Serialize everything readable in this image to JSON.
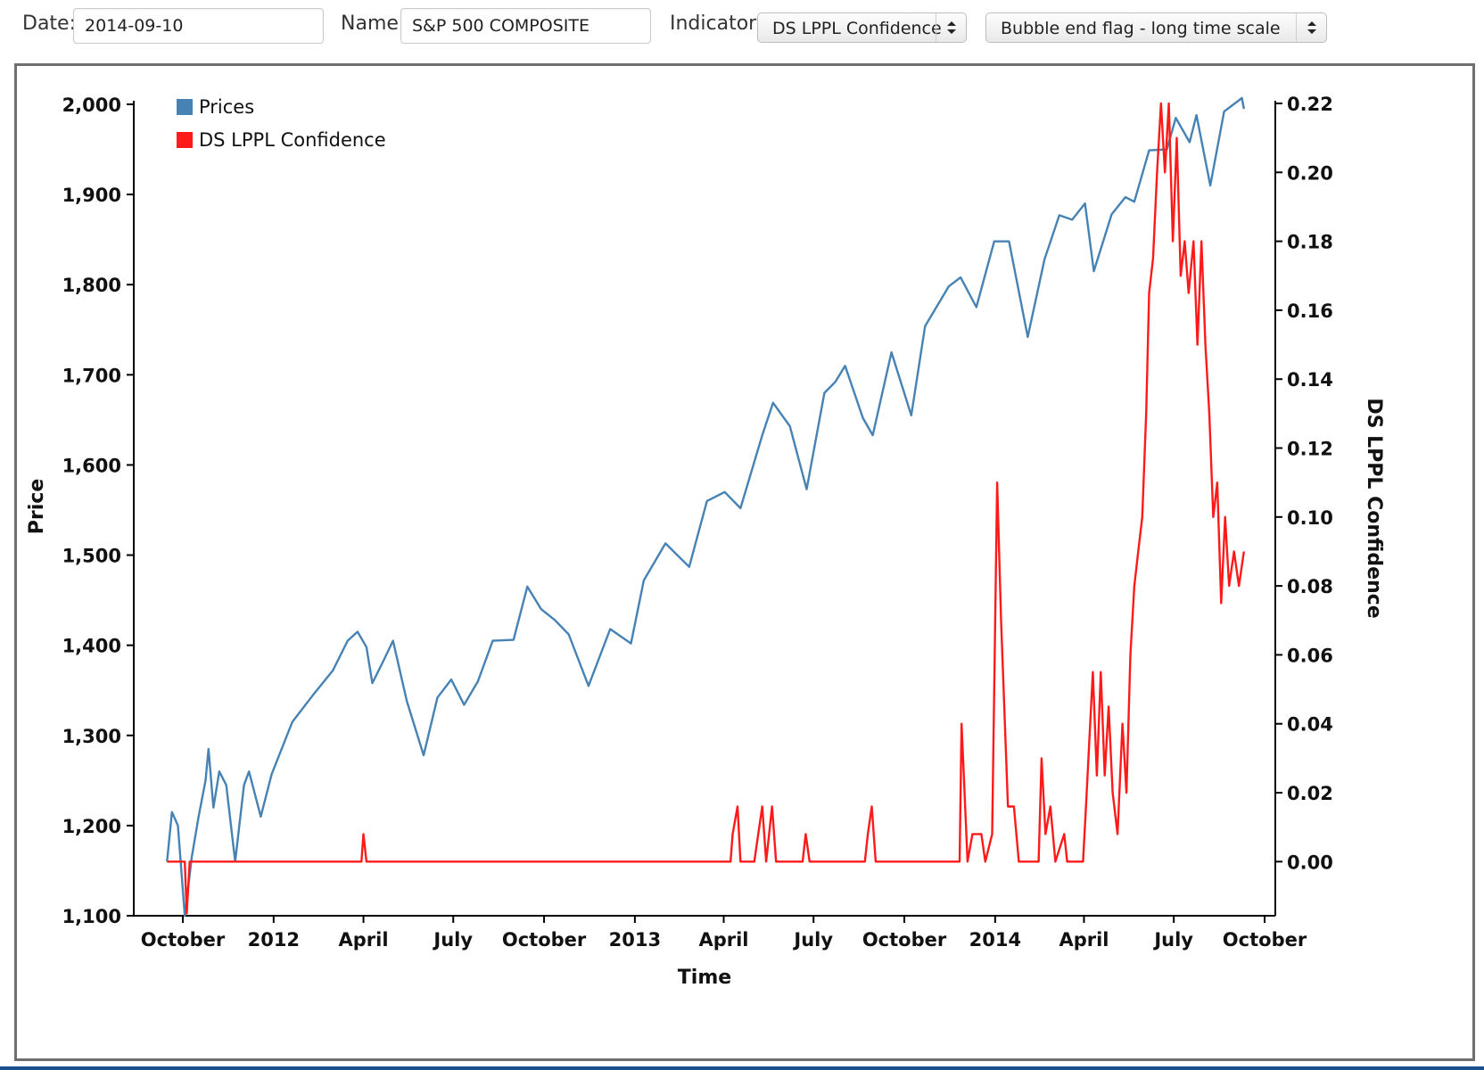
{
  "controls": {
    "date_label": "Date:",
    "date_value": "2014-09-10",
    "name_label": "Name:",
    "name_value": "S&P 500 COMPOSITE",
    "indicator_label": "Indicator:",
    "indicator_value": "DS LPPL Confidence",
    "scale_value": "Bubble end flag - long time scale"
  },
  "colors": {
    "prices": "#4682b4",
    "indicator": "#ff1a1a",
    "frame": "#6f6f6f"
  },
  "chart_data": {
    "type": "line",
    "xlabel": "Time",
    "ylabel_left": "Price",
    "ylabel_right": "DS LPPL Confidence",
    "legend_position": "top-left",
    "x_tick_labels": [
      "October",
      "2012",
      "April",
      "July",
      "October",
      "2013",
      "April",
      "July",
      "October",
      "2014",
      "April",
      "July",
      "October"
    ],
    "x_tick_dates": [
      "2011-10-01",
      "2012-01-01",
      "2012-04-01",
      "2012-07-01",
      "2012-10-01",
      "2013-01-01",
      "2013-04-01",
      "2013-07-01",
      "2013-10-01",
      "2014-01-01",
      "2014-04-01",
      "2014-07-01",
      "2014-10-01"
    ],
    "y_left_ticks": [
      "1,100",
      "1,200",
      "1,300",
      "1,400",
      "1,500",
      "1,600",
      "1,700",
      "1,800",
      "1,900",
      "2,000"
    ],
    "y_left_range": [
      1100,
      2000
    ],
    "y_right_ticks": [
      "0.00",
      "0.02",
      "0.04",
      "0.06",
      "0.08",
      "0.10",
      "0.12",
      "0.14",
      "0.16",
      "0.18",
      "0.20",
      "0.22"
    ],
    "y_right_range": [
      -0.0157,
      0.22
    ],
    "series": [
      {
        "name": "Prices",
        "axis": "left",
        "points": [
          [
            "2011-09-15",
            1160
          ],
          [
            "2011-09-20",
            1215
          ],
          [
            "2011-09-26",
            1200
          ],
          [
            "2011-10-03",
            1100
          ],
          [
            "2011-10-10",
            1165
          ],
          [
            "2011-10-17",
            1210
          ],
          [
            "2011-10-24",
            1250
          ],
          [
            "2011-10-27",
            1285
          ],
          [
            "2011-11-01",
            1220
          ],
          [
            "2011-11-07",
            1260
          ],
          [
            "2011-11-14",
            1245
          ],
          [
            "2011-11-23",
            1160
          ],
          [
            "2011-12-02",
            1245
          ],
          [
            "2011-12-07",
            1260
          ],
          [
            "2011-12-19",
            1210
          ],
          [
            "2011-12-30",
            1257
          ],
          [
            "2012-01-20",
            1315
          ],
          [
            "2012-02-10",
            1345
          ],
          [
            "2012-03-01",
            1372
          ],
          [
            "2012-03-16",
            1405
          ],
          [
            "2012-03-26",
            1415
          ],
          [
            "2012-04-04",
            1398
          ],
          [
            "2012-04-10",
            1358
          ],
          [
            "2012-04-20",
            1380
          ],
          [
            "2012-05-01",
            1405
          ],
          [
            "2012-05-15",
            1338
          ],
          [
            "2012-06-01",
            1278
          ],
          [
            "2012-06-15",
            1342
          ],
          [
            "2012-06-29",
            1362
          ],
          [
            "2012-07-12",
            1334
          ],
          [
            "2012-07-26",
            1360
          ],
          [
            "2012-08-10",
            1405
          ],
          [
            "2012-08-31",
            1406
          ],
          [
            "2012-09-14",
            1465
          ],
          [
            "2012-09-28",
            1440
          ],
          [
            "2012-10-12",
            1428
          ],
          [
            "2012-10-26",
            1412
          ],
          [
            "2012-11-15",
            1355
          ],
          [
            "2012-12-07",
            1418
          ],
          [
            "2012-12-28",
            1402
          ],
          [
            "2013-01-10",
            1472
          ],
          [
            "2013-02-01",
            1513
          ],
          [
            "2013-02-25",
            1487
          ],
          [
            "2013-03-15",
            1560
          ],
          [
            "2013-04-02",
            1570
          ],
          [
            "2013-04-18",
            1552
          ],
          [
            "2013-05-10",
            1633
          ],
          [
            "2013-05-21",
            1669
          ],
          [
            "2013-06-07",
            1643
          ],
          [
            "2013-06-24",
            1573
          ],
          [
            "2013-07-12",
            1680
          ],
          [
            "2013-07-23",
            1692
          ],
          [
            "2013-08-02",
            1710
          ],
          [
            "2013-08-20",
            1652
          ],
          [
            "2013-08-30",
            1633
          ],
          [
            "2013-09-18",
            1725
          ],
          [
            "2013-10-08",
            1655
          ],
          [
            "2013-10-22",
            1754
          ],
          [
            "2013-11-15",
            1798
          ],
          [
            "2013-11-27",
            1808
          ],
          [
            "2013-12-13",
            1775
          ],
          [
            "2013-12-31",
            1848
          ],
          [
            "2014-01-15",
            1848
          ],
          [
            "2014-02-03",
            1742
          ],
          [
            "2014-02-20",
            1828
          ],
          [
            "2014-03-07",
            1877
          ],
          [
            "2014-03-20",
            1872
          ],
          [
            "2014-04-02",
            1890
          ],
          [
            "2014-04-11",
            1815
          ],
          [
            "2014-04-29",
            1878
          ],
          [
            "2014-05-13",
            1897
          ],
          [
            "2014-05-22",
            1892
          ],
          [
            "2014-06-06",
            1949
          ],
          [
            "2014-06-24",
            1950
          ],
          [
            "2014-07-03",
            1985
          ],
          [
            "2014-07-17",
            1958
          ],
          [
            "2014-07-24",
            1988
          ],
          [
            "2014-08-07",
            1910
          ],
          [
            "2014-08-21",
            1992
          ],
          [
            "2014-09-02",
            2002
          ],
          [
            "2014-09-08",
            2007
          ],
          [
            "2014-09-10",
            1995
          ]
        ]
      },
      {
        "name": "DS LPPL Confidence",
        "axis": "right",
        "points": [
          [
            "2011-09-15",
            0.0
          ],
          [
            "2011-10-03",
            0.0
          ],
          [
            "2011-10-05",
            -0.015
          ],
          [
            "2011-10-08",
            0.0
          ],
          [
            "2012-03-30",
            0.0
          ],
          [
            "2012-04-01",
            0.008
          ],
          [
            "2012-04-04",
            0.0
          ],
          [
            "2013-04-08",
            0.0
          ],
          [
            "2013-04-10",
            0.008
          ],
          [
            "2013-04-15",
            0.016
          ],
          [
            "2013-04-18",
            0.0
          ],
          [
            "2013-05-02",
            0.0
          ],
          [
            "2013-05-06",
            0.008
          ],
          [
            "2013-05-10",
            0.016
          ],
          [
            "2013-05-14",
            0.0
          ],
          [
            "2013-05-20",
            0.016
          ],
          [
            "2013-05-24",
            0.0
          ],
          [
            "2013-06-20",
            0.0
          ],
          [
            "2013-06-23",
            0.008
          ],
          [
            "2013-06-27",
            0.0
          ],
          [
            "2013-08-22",
            0.0
          ],
          [
            "2013-08-25",
            0.008
          ],
          [
            "2013-08-29",
            0.016
          ],
          [
            "2013-09-02",
            0.0
          ],
          [
            "2013-11-26",
            0.0
          ],
          [
            "2013-11-28",
            0.04
          ],
          [
            "2013-12-04",
            0.0
          ],
          [
            "2013-12-09",
            0.008
          ],
          [
            "2013-12-18",
            0.008
          ],
          [
            "2013-12-22",
            0.0
          ],
          [
            "2013-12-29",
            0.008
          ],
          [
            "2014-01-03",
            0.11
          ],
          [
            "2014-01-07",
            0.07
          ],
          [
            "2014-01-14",
            0.016
          ],
          [
            "2014-01-20",
            0.016
          ],
          [
            "2014-01-25",
            0.0
          ],
          [
            "2014-02-14",
            0.0
          ],
          [
            "2014-02-17",
            0.03
          ],
          [
            "2014-02-21",
            0.008
          ],
          [
            "2014-02-26",
            0.016
          ],
          [
            "2014-03-03",
            0.0
          ],
          [
            "2014-03-12",
            0.008
          ],
          [
            "2014-03-15",
            0.0
          ],
          [
            "2014-03-31",
            0.0
          ],
          [
            "2014-04-03",
            0.016
          ],
          [
            "2014-04-10",
            0.055
          ],
          [
            "2014-04-14",
            0.025
          ],
          [
            "2014-04-18",
            0.055
          ],
          [
            "2014-04-22",
            0.025
          ],
          [
            "2014-04-26",
            0.045
          ],
          [
            "2014-04-30",
            0.02
          ],
          [
            "2014-05-05",
            0.008
          ],
          [
            "2014-05-10",
            0.04
          ],
          [
            "2014-05-14",
            0.02
          ],
          [
            "2014-05-18",
            0.06
          ],
          [
            "2014-05-22",
            0.08
          ],
          [
            "2014-05-26",
            0.09
          ],
          [
            "2014-05-30",
            0.1
          ],
          [
            "2014-06-03",
            0.13
          ],
          [
            "2014-06-06",
            0.165
          ],
          [
            "2014-06-10",
            0.175
          ],
          [
            "2014-06-14",
            0.2
          ],
          [
            "2014-06-18",
            0.22
          ],
          [
            "2014-06-22",
            0.2
          ],
          [
            "2014-06-26",
            0.22
          ],
          [
            "2014-06-30",
            0.18
          ],
          [
            "2014-07-04",
            0.21
          ],
          [
            "2014-07-08",
            0.17
          ],
          [
            "2014-07-12",
            0.18
          ],
          [
            "2014-07-16",
            0.165
          ],
          [
            "2014-07-21",
            0.18
          ],
          [
            "2014-07-25",
            0.15
          ],
          [
            "2014-07-29",
            0.18
          ],
          [
            "2014-08-02",
            0.15
          ],
          [
            "2014-08-06",
            0.13
          ],
          [
            "2014-08-10",
            0.1
          ],
          [
            "2014-08-14",
            0.11
          ],
          [
            "2014-08-18",
            0.075
          ],
          [
            "2014-08-22",
            0.1
          ],
          [
            "2014-08-26",
            0.08
          ],
          [
            "2014-08-31",
            0.09
          ],
          [
            "2014-09-05",
            0.08
          ],
          [
            "2014-09-10",
            0.09
          ]
        ]
      }
    ]
  }
}
